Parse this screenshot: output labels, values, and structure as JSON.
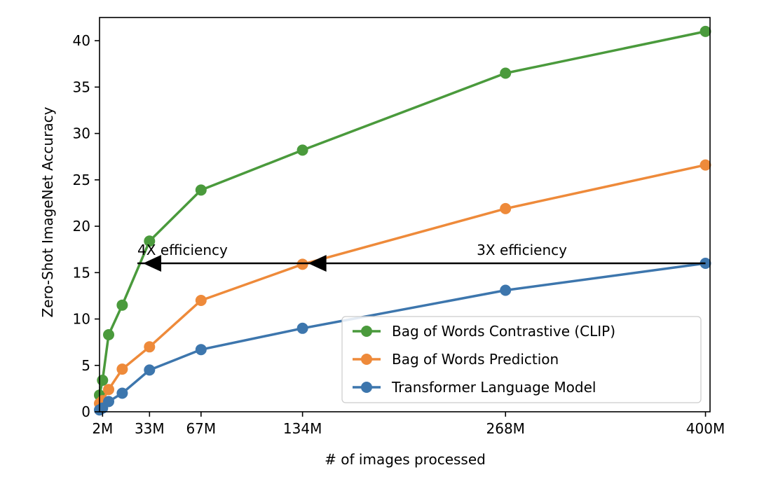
{
  "chart_data": {
    "type": "line",
    "xlabel": "# of images processed",
    "ylabel": "Zero-Shot ImageNet Accuracy",
    "xlim": [
      0,
      403
    ],
    "ylim": [
      0,
      42.5
    ],
    "x_ticks": [
      {
        "value": 2,
        "label": "2M"
      },
      {
        "value": 33,
        "label": "33M"
      },
      {
        "value": 67,
        "label": "67M"
      },
      {
        "value": 134,
        "label": "134M"
      },
      {
        "value": 268,
        "label": "268M"
      },
      {
        "value": 400,
        "label": "400M"
      }
    ],
    "y_ticks": [
      0,
      5,
      10,
      15,
      20,
      25,
      30,
      35,
      40
    ],
    "grid": false,
    "legend_position": "lower-right",
    "series": [
      {
        "name": "Bag of Words Contrastive (CLIP)",
        "color": "#4a9a3c",
        "x": [
          0,
          2,
          6,
          15,
          33,
          67,
          134,
          268,
          400
        ],
        "y": [
          1.8,
          3.4,
          8.3,
          11.5,
          18.4,
          23.9,
          28.2,
          36.5,
          41.0
        ]
      },
      {
        "name": "Bag of Words Prediction",
        "color": "#ee8a3a",
        "x": [
          0,
          2,
          6,
          15,
          33,
          67,
          134,
          268,
          400
        ],
        "y": [
          0.9,
          1.2,
          2.4,
          4.6,
          7.0,
          12.0,
          15.9,
          21.9,
          26.6
        ]
      },
      {
        "name": "Transformer Language Model",
        "color": "#3d76ad",
        "x": [
          0,
          2,
          6,
          15,
          33,
          67,
          134,
          268,
          400
        ],
        "y": [
          0.2,
          0.4,
          1.1,
          2.0,
          4.5,
          6.7,
          9.0,
          13.1,
          16.0
        ]
      }
    ],
    "annotations": [
      {
        "text": "4X efficiency",
        "x": 25,
        "y": 16.9
      },
      {
        "text": "3X efficiency",
        "x": 249,
        "y": 16.9
      }
    ],
    "arrow_line": {
      "y": 16.0,
      "from_x": 400,
      "to_x": 134,
      "arrowheads_x": [
        134,
        25
      ]
    }
  }
}
